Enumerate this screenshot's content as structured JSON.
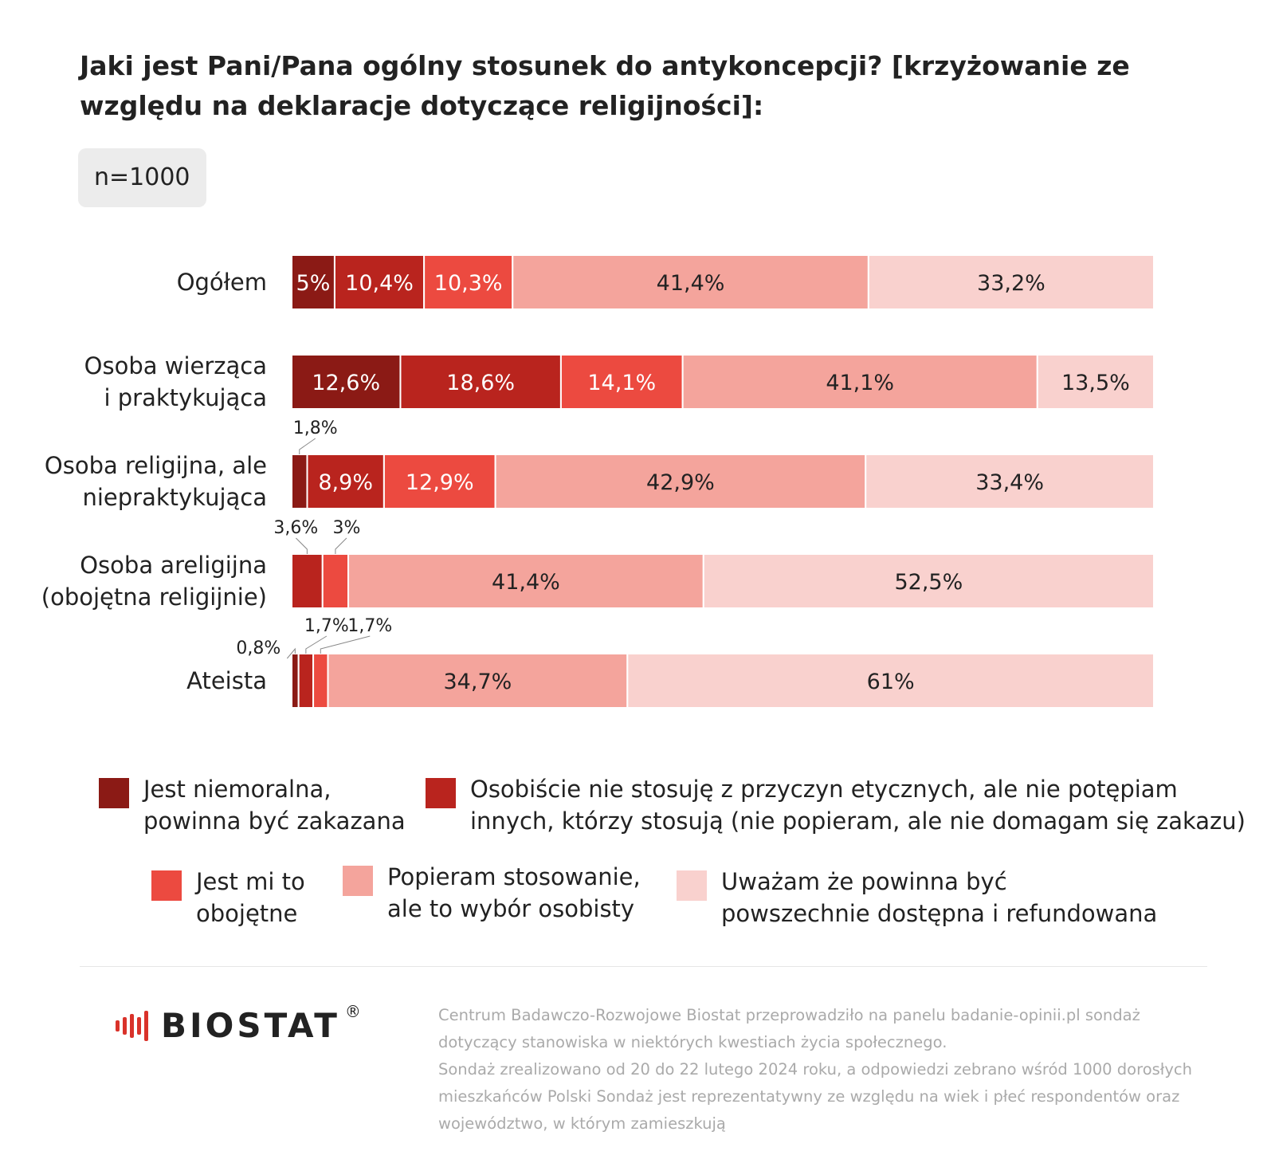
{
  "title": "Jaki jest Pani/Pana ogólny stosunek do antykoncepcji? [krzyżowanie ze względu na deklaracje dotyczące religijności]:",
  "sample": "n=1000",
  "colors": {
    "cat1": "#8b1a15",
    "cat2": "#b9241e",
    "cat3": "#ec4a40",
    "cat4": "#f4a49c",
    "cat5": "#f9d1ce",
    "label_light": "#ffffff",
    "label_dark": "#222222"
  },
  "chart_data": {
    "type": "bar",
    "orientation": "horizontal",
    "stacked": true,
    "xlim": [
      0,
      100
    ],
    "grid": false,
    "legend_position": "bottom",
    "categories": [
      [
        "Ogółem"
      ],
      [
        "Osoba wierząca",
        "i praktykująca"
      ],
      [
        "Osoba religijna, ale",
        "niepraktykująca"
      ],
      [
        "Osoba areligijna",
        "(obojętna religijnie)"
      ],
      [
        "Ateista"
      ]
    ],
    "series": [
      {
        "name": "Jest niemoralna, powinna być zakazana",
        "values": [
          5,
          12.6,
          1.8,
          0,
          0.8
        ]
      },
      {
        "name": "Osobiście nie stosuję z przyczyn etycznych, ale nie potępiam innych, którzy stosują (nie popieram, ale nie domagam się zakazu)",
        "values": [
          10.4,
          18.6,
          8.9,
          3.6,
          1.7
        ]
      },
      {
        "name": "Jest mi to obojętne",
        "values": [
          10.3,
          14.1,
          12.9,
          3,
          1.7
        ]
      },
      {
        "name": "Popieram stosowanie, ale to wybór osobisty",
        "values": [
          41.4,
          41.1,
          42.9,
          41.4,
          34.7
        ]
      },
      {
        "name": "Uważam że powinna być powszechnie dostępna i refundowana",
        "values": [
          33.2,
          13.5,
          33.4,
          52.5,
          61
        ]
      }
    ],
    "data_labels": [
      [
        "5%",
        "10,4%",
        "10,3%",
        "41,4%",
        "33,2%"
      ],
      [
        "12,6%",
        "18,6%",
        "14,1%",
        "41,1%",
        "13,5%"
      ],
      [
        "1,8%",
        "8,9%",
        "12,9%",
        "42,9%",
        "33,4%"
      ],
      [
        "",
        "3,6%",
        "3%",
        "41,4%",
        "52,5%"
      ],
      [
        "0,8%",
        "1,7%",
        "1,7%",
        "34,7%",
        "61%"
      ]
    ]
  },
  "legend": [
    {
      "lines": [
        "Jest niemoralna,",
        "powinna być zakazana"
      ]
    },
    {
      "lines": [
        "Osobiście nie stosuję z przyczyn etycznych, ale nie potępiam",
        "innych, którzy stosują (nie popieram, ale nie domagam się zakazu)"
      ]
    },
    {
      "lines": [
        "Jest mi to",
        "obojętne"
      ]
    },
    {
      "lines": [
        "Popieram stosowanie,",
        "ale to wybór osobisty"
      ]
    },
    {
      "lines": [
        "Uważam że powinna być",
        "powszechnie dostępna i refundowana"
      ]
    }
  ],
  "logo": {
    "text": "BIOSTAT",
    "reg": "®"
  },
  "footnote": [
    "Centrum Badawczo-Rozwojowe Biostat przeprowadziło na panelu badanie-opinii.pl sondaż dotyczący stanowiska w niektórych kwestiach życia społecznego.",
    "Sondaż zrealizowano od 20 do 22 lutego 2024 roku, a odpowiedzi zebrano wśród 1000 dorosłych mieszkańców Polski Sondaż jest reprezentatywny ze względu na wiek i płeć respondentów oraz województwo, w którym zamieszkują"
  ]
}
